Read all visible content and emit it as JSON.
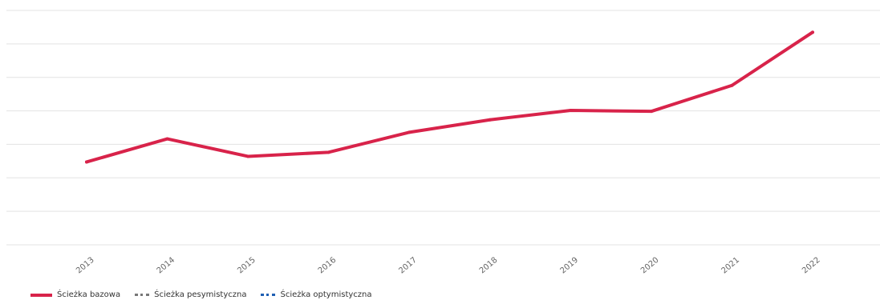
{
  "chart_data": {
    "type": "line",
    "categories": [
      "2013",
      "2014",
      "2015",
      "2016",
      "2017",
      "2018",
      "2019",
      "2020",
      "2021",
      "2022"
    ],
    "series": [
      {
        "name": "Ścieżka bazowa",
        "color": "#d8234a",
        "values": [
          2.15,
          2.89,
          2.33,
          2.46,
          3.1,
          3.5,
          3.8,
          3.77,
          4.6,
          6.3
        ]
      }
    ],
    "ylim": [
      -0.5,
      7.0
    ],
    "grid": true
  },
  "legend": {
    "items": [
      {
        "label": "Ścieżka bazowa",
        "color": "#d8234a",
        "style": "solid"
      },
      {
        "label": "Ścieżka pesymistyczna",
        "color": "#777777",
        "style": "dotted"
      },
      {
        "label": "Ścieżka optymistyczna",
        "color": "#1f5fb3",
        "style": "dotted"
      }
    ]
  }
}
